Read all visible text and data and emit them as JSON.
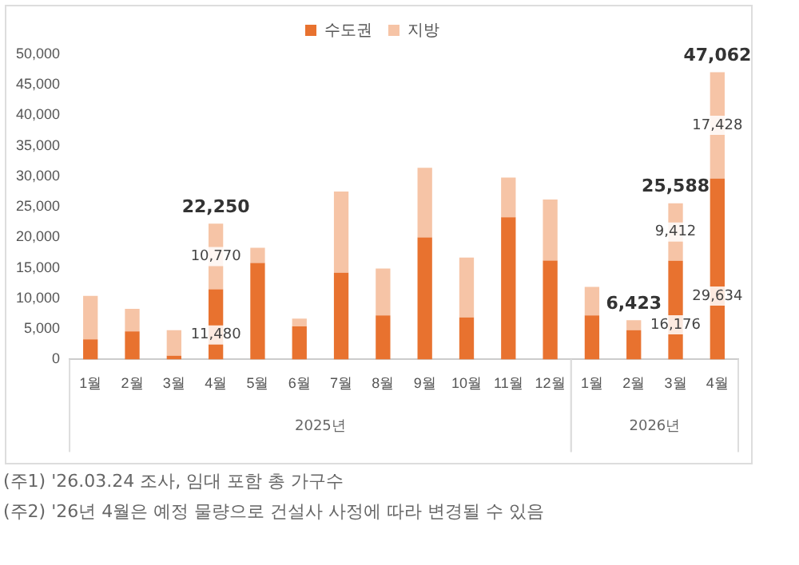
{
  "chart_data": {
    "type": "bar",
    "stacked": true,
    "legend": "top",
    "categories": [
      "1월",
      "2월",
      "3월",
      "4월",
      "5월",
      "6월",
      "7월",
      "8월",
      "9월",
      "10월",
      "11월",
      "12월",
      "1월",
      "2월",
      "3월",
      "4월"
    ],
    "series": [
      {
        "name": "수도권",
        "color": "#e8722f",
        "values": [
          3300,
          4600,
          600,
          11480,
          15800,
          5400,
          14200,
          7200,
          20000,
          6900,
          23300,
          16200,
          7200,
          4800,
          16176,
          29634
        ],
        "value_labels": [
          null,
          null,
          null,
          "11,480",
          null,
          null,
          null,
          null,
          null,
          null,
          null,
          null,
          null,
          null,
          "16,176",
          "29,634"
        ]
      },
      {
        "name": "지방",
        "color": "#f6c4a6",
        "values": [
          7100,
          3700,
          4200,
          10770,
          2500,
          1300,
          13300,
          7700,
          11400,
          9800,
          6500,
          10000,
          4700,
          1623,
          9412,
          17428
        ],
        "value_labels": [
          null,
          null,
          null,
          "10,770",
          null,
          null,
          null,
          null,
          null,
          null,
          null,
          null,
          null,
          null,
          "9,412",
          "17,428"
        ]
      }
    ],
    "totals": [
      null,
      null,
      null,
      "22,250",
      null,
      null,
      null,
      null,
      null,
      null,
      null,
      null,
      null,
      "6,423",
      "25,588",
      "47,062"
    ],
    "ylim": [
      0,
      50000
    ],
    "yticks": [
      {
        "value": 0,
        "label": "0"
      },
      {
        "value": 5000,
        "label": "5,000"
      },
      {
        "value": 10000,
        "label": "10,000"
      },
      {
        "value": 15000,
        "label": "15,000"
      },
      {
        "value": 20000,
        "label": "20,000"
      },
      {
        "value": 25000,
        "label": "25,000"
      },
      {
        "value": 30000,
        "label": "30,000"
      },
      {
        "value": 35000,
        "label": "35,000"
      },
      {
        "value": 40000,
        "label": "40,000"
      },
      {
        "value": 45000,
        "label": "45,000"
      },
      {
        "value": 50000,
        "label": "50,000"
      }
    ],
    "grid": false,
    "annotations": [
      "2025년",
      "2026년",
      "(주1) '26.03.24 조사, 임대 포함 총 가구수",
      "(주2) '26년 4월은 예정 물량으로 건설사 사정에 따라 변경될 수 있음"
    ]
  }
}
